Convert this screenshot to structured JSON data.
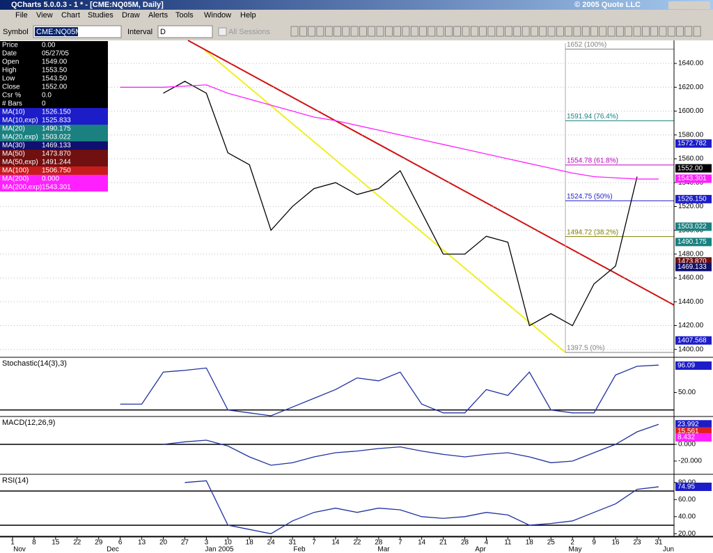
{
  "window": {
    "title": "QCharts 5.0.0.3 - 1 * - [CME:NQ05M, Daily]",
    "copyright": "© 2005 Quote LLC"
  },
  "menu": [
    "File",
    "View",
    "Chart",
    "Studies",
    "Draw",
    "Alerts",
    "Tools",
    "Window",
    "Help"
  ],
  "toolbar": {
    "symbol_label": "Symbol",
    "symbol": "CME:NQ05M",
    "interval_label": "Interval",
    "interval": "D",
    "sessions": "All Sessions"
  },
  "data_window": [
    {
      "label": "Price",
      "value": "0.00",
      "color": "#000000"
    },
    {
      "label": "Date",
      "value": "05/27/05",
      "color": "#000000"
    },
    {
      "label": "Open",
      "value": "1549.00",
      "color": "#000000"
    },
    {
      "label": "High",
      "value": "1553.50",
      "color": "#000000"
    },
    {
      "label": "Low",
      "value": "1543.50",
      "color": "#000000"
    },
    {
      "label": "Close",
      "value": "1552.00",
      "color": "#000000"
    },
    {
      "label": "Csr %",
      "value": "0.0",
      "color": "#000000"
    },
    {
      "label": "# Bars",
      "value": "0",
      "color": "#000000"
    },
    {
      "label": "MA(10)",
      "value": "1526.150",
      "color": "#1c1cc8"
    },
    {
      "label": "MA(10,exp)",
      "value": "1525.833",
      "color": "#1c1cc8"
    },
    {
      "label": "MA(20)",
      "value": "1490.175",
      "color": "#1a8080"
    },
    {
      "label": "MA(20,exp)",
      "value": "1503.022",
      "color": "#1a8080"
    },
    {
      "label": "MA(30)",
      "value": "1469.133",
      "color": "#101070"
    },
    {
      "label": "MA(50)",
      "value": "1473.870",
      "color": "#701010"
    },
    {
      "label": "MA(50,exp)",
      "value": "1491.244",
      "color": "#701010"
    },
    {
      "label": "MA(100)",
      "value": "1506.750",
      "color": "#c81c1c"
    },
    {
      "label": "MA(200)",
      "value": "0.000",
      "color": "#ff20ff"
    },
    {
      "label": "MA(200,exp)",
      "value": "1543.301",
      "color": "#ff20ff"
    }
  ],
  "chart_data": [
    {
      "type": "line",
      "categories": [
        "1",
        "8",
        "15",
        "22",
        "29",
        "6",
        "13",
        "20",
        "27",
        "3",
        "10",
        "18",
        "24",
        "31",
        "7",
        "14",
        "22",
        "28",
        "7",
        "14",
        "21",
        "28",
        "4",
        "11",
        "18",
        "25",
        "2",
        "9",
        "16",
        "23",
        "31"
      ],
      "months": [
        "Nov",
        "Dec",
        "Jan 2005",
        "Feb",
        "Mar",
        "Apr",
        "May",
        "Jun"
      ],
      "ylim": [
        1394,
        1657
      ],
      "yticks": [
        {
          "value": 1400,
          "label": "1400.00"
        },
        {
          "value": 1420,
          "label": "1420.00"
        },
        {
          "value": 1440,
          "label": "1440.00"
        },
        {
          "value": 1460,
          "label": "1460.00"
        },
        {
          "value": 1480,
          "label": "1480.00"
        },
        {
          "value": 1500,
          "label": "1500.00"
        },
        {
          "value": 1520,
          "label": "1520.00"
        },
        {
          "value": 1540,
          "label": "1540.00"
        },
        {
          "value": 1560,
          "label": "1560.00"
        },
        {
          "value": 1580,
          "label": "1580.00"
        },
        {
          "value": 1600,
          "label": "1600.00"
        },
        {
          "value": 1620,
          "label": "1620.00"
        },
        {
          "value": 1640,
          "label": "1640.00"
        }
      ],
      "grid": true,
      "series": [
        {
          "color": "#000000",
          "values": [
            null,
            null,
            null,
            null,
            null,
            null,
            null,
            1615,
            1625,
            1615,
            1565,
            1555,
            1500,
            1520,
            1535,
            1540,
            1530,
            1535,
            1550,
            1515,
            1480,
            1480,
            1495,
            1490,
            1420,
            1430,
            1420,
            1455,
            1470,
            1545,
            null
          ]
        },
        {
          "color": "#ff20ff",
          "values": [
            null,
            null,
            null,
            null,
            null,
            1620,
            1620,
            1620,
            1621,
            1622,
            1615,
            1610,
            1605,
            1600,
            1595,
            1592,
            1588,
            1584,
            1580,
            1576,
            1572,
            1568,
            1564,
            1560,
            1556,
            1552,
            1548,
            1545,
            1544,
            1543,
            1543
          ]
        }
      ],
      "fib_levels": [
        {
          "value": 1652,
          "label": "1652 (100%)",
          "color": "#808080"
        },
        {
          "value": 1591.94,
          "label": "1591.94 (76.4%)",
          "color": "#1a8080"
        },
        {
          "value": 1554.78,
          "label": "1554.78 (61.8%)",
          "color": "#c000c0"
        },
        {
          "value": 1524.75,
          "label": "1524.75 (50%)",
          "color": "#1c1cc8"
        },
        {
          "value": 1494.72,
          "label": "1494.72 (38.2%)",
          "color": "#808000"
        },
        {
          "value": 1397.5,
          "label": "1397.5 (0%)",
          "color": "#808080"
        }
      ],
      "tags": [
        {
          "value": 1572.782,
          "label": "1572.782",
          "color": "#1c1cc8"
        },
        {
          "value": 1552,
          "label": "1552.00",
          "color": "#000000"
        },
        {
          "value": 1543.301,
          "label": "1543.301",
          "color": "#ff20ff"
        },
        {
          "value": 1526.15,
          "label": "1526.150",
          "color": "#1c1cc8"
        },
        {
          "value": 1503.022,
          "label": "1503.022",
          "color": "#1a8080"
        },
        {
          "value": 1490.175,
          "label": "1490.175",
          "color": "#1a8080"
        },
        {
          "value": 1473.87,
          "label": "1473.870",
          "color": "#701010"
        },
        {
          "value": 1469.133,
          "label": "1469.133",
          "color": "#101070"
        },
        {
          "value": 1407.568,
          "label": "1407.568",
          "color": "#1c1cc8"
        }
      ]
    },
    {
      "type": "line",
      "title": "Stochastic(14(3),3)",
      "ylim": [
        10,
        108
      ],
      "yticks": [
        {
          "value": 50,
          "label": "50.00"
        }
      ],
      "levels": [
        20
      ],
      "series": [
        {
          "color": "#2030a0",
          "values": [
            null,
            null,
            null,
            null,
            null,
            30,
            30,
            85,
            88,
            92,
            20,
            15,
            10,
            25,
            40,
            55,
            75,
            70,
            85,
            30,
            15,
            15,
            55,
            45,
            85,
            20,
            15,
            15,
            80,
            95,
            97
          ]
        }
      ],
      "tags": [
        {
          "value": 96.09,
          "label": "96.09",
          "color": "#1c1cc8"
        }
      ]
    },
    {
      "type": "line",
      "title": "MACD(12,26,9)",
      "ylim": [
        -35,
        31.7
      ],
      "yticks": [
        {
          "value": 0,
          "label": "0.000"
        },
        {
          "value": -20,
          "label": "-20.000"
        }
      ],
      "levels": [
        0
      ],
      "series": [
        {
          "color": "#2030a0",
          "values": [
            null,
            null,
            null,
            null,
            null,
            null,
            null,
            0,
            3,
            5,
            -2,
            -15,
            -25,
            -22,
            -15,
            -10,
            -8,
            -5,
            -3,
            -8,
            -12,
            -15,
            -12,
            -10,
            -15,
            -22,
            -20,
            -10,
            0,
            15,
            24
          ]
        }
      ],
      "tags": [
        {
          "value": 23.992,
          "label": "23.992",
          "color": "#1c1cc8"
        },
        {
          "value": 15.561,
          "label": "15.561",
          "color": "#e02020"
        },
        {
          "value": 8.432,
          "label": "8.432",
          "color": "#ff20ff"
        }
      ]
    },
    {
      "type": "line",
      "title": "RSI(14)",
      "ylim": [
        17,
        88
      ],
      "yticks": [
        {
          "value": 80,
          "label": "80.00"
        },
        {
          "value": 60,
          "label": "60.00"
        },
        {
          "value": 40,
          "label": "40.00"
        },
        {
          "value": 20,
          "label": "20.00"
        }
      ],
      "levels": [
        70,
        30
      ],
      "series": [
        {
          "color": "#2030a0",
          "values": [
            null,
            null,
            null,
            null,
            null,
            null,
            null,
            null,
            80,
            82,
            30,
            25,
            20,
            35,
            45,
            50,
            45,
            50,
            48,
            40,
            38,
            40,
            45,
            42,
            30,
            32,
            35,
            45,
            55,
            72,
            75
          ]
        }
      ],
      "tags": [
        {
          "value": 74.95,
          "label": "74.95",
          "color": "#1c1cc8"
        }
      ]
    }
  ]
}
